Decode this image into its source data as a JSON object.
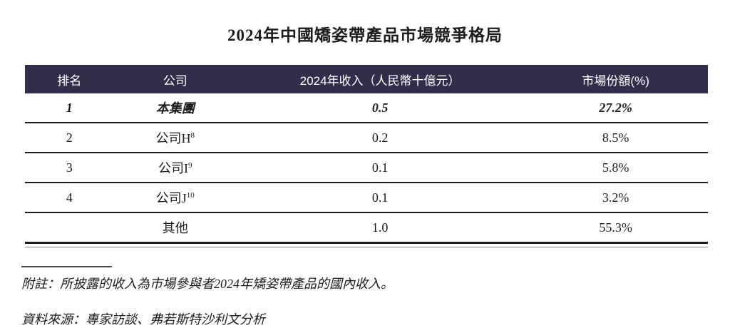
{
  "title": "2024年中國矯姿帶產品市場競爭格局",
  "colors": {
    "header-bg": "#312e4c",
    "header-text": "#ffffff",
    "body-text": "#1c1c1c"
  },
  "table": {
    "headers": [
      "排名",
      "公司",
      "2024年收入（人民幣十億元）",
      "市場份額(%)"
    ],
    "rows": [
      {
        "rank": "1",
        "company": "本集團",
        "company_sup": "",
        "revenue": "0.5",
        "share": "27.2%"
      },
      {
        "rank": "2",
        "company": "公司H",
        "company_sup": "8",
        "revenue": "0.2",
        "share": "8.5%"
      },
      {
        "rank": "3",
        "company": "公司I",
        "company_sup": "9",
        "revenue": "0.1",
        "share": "5.8%"
      },
      {
        "rank": "4",
        "company": "公司J",
        "company_sup": "10",
        "revenue": "0.1",
        "share": "3.2%"
      },
      {
        "rank": "",
        "company": "其他",
        "company_sup": "",
        "revenue": "1.0",
        "share": "55.3%"
      }
    ]
  },
  "notes": {
    "note": "附註：所披露的收入為市場參與者2024年矯姿帶產品的國內收入。",
    "source": "資料來源：專家訪談、弗若斯特沙利文分析"
  }
}
